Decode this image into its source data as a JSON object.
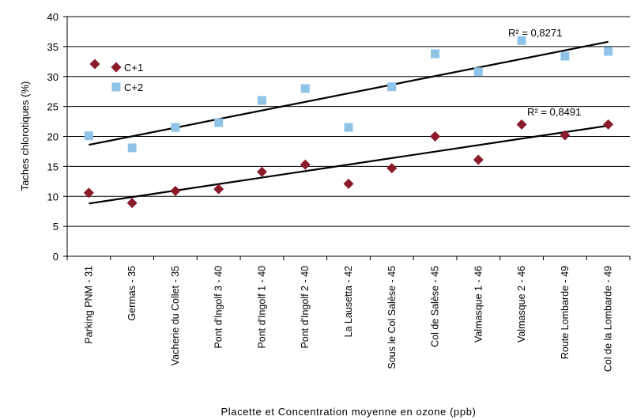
{
  "chart_data": {
    "type": "scatter",
    "categories": [
      "Parking PNM - 31",
      "Germas - 35",
      "Vacherie du Collet - 35",
      "Pont d'Ingolf 3 - 40",
      "Pont d'Ingolf 1 - 40",
      "Pont d'Ingolf 2 - 40",
      "La Lausetta - 42",
      "Sous le Col Salèse - 45",
      "Col de Salèse - 45",
      "Valmasque 1 - 46",
      "Valmasque 2 - 46",
      "Route Lombarde - 49",
      "Col de la Lombarde - 49"
    ],
    "series": [
      {
        "name": "C+1",
        "color": "#8b1a2b",
        "marker": "diamond",
        "values": [
          10.6,
          8.9,
          10.9,
          11.2,
          14.1,
          15.3,
          12.1,
          14.7,
          20.0,
          16.1,
          22.0,
          20.2,
          22.0
        ],
        "trendline": {
          "start": 8.8,
          "end": 21.8,
          "r2_label": "R² = 0,8491"
        }
      },
      {
        "name": "C+2",
        "color": "#8fc3e8",
        "marker": "square",
        "values": [
          20.1,
          18.1,
          21.5,
          22.3,
          26.0,
          28.0,
          21.5,
          28.3,
          33.8,
          30.8,
          36.0,
          33.4,
          34.2
        ],
        "trendline": {
          "start": 18.6,
          "end": 35.8,
          "r2_label": "R² = 0,8271"
        }
      }
    ],
    "title": "",
    "xlabel": "Placette et Concentration moyenne en ozone (ppb)",
    "ylabel": "Taches chlorotiques (%)",
    "ylim": [
      0,
      40
    ],
    "yticks": [
      0,
      5,
      10,
      15,
      20,
      25,
      30,
      35,
      40
    ],
    "grid": true,
    "legend_position": "top-left",
    "legend_labels": [
      "C+1",
      "C+2"
    ],
    "marker_in_legend_c1": "#8b1a2b",
    "marker_in_legend_c2": "#8fc3e8"
  }
}
